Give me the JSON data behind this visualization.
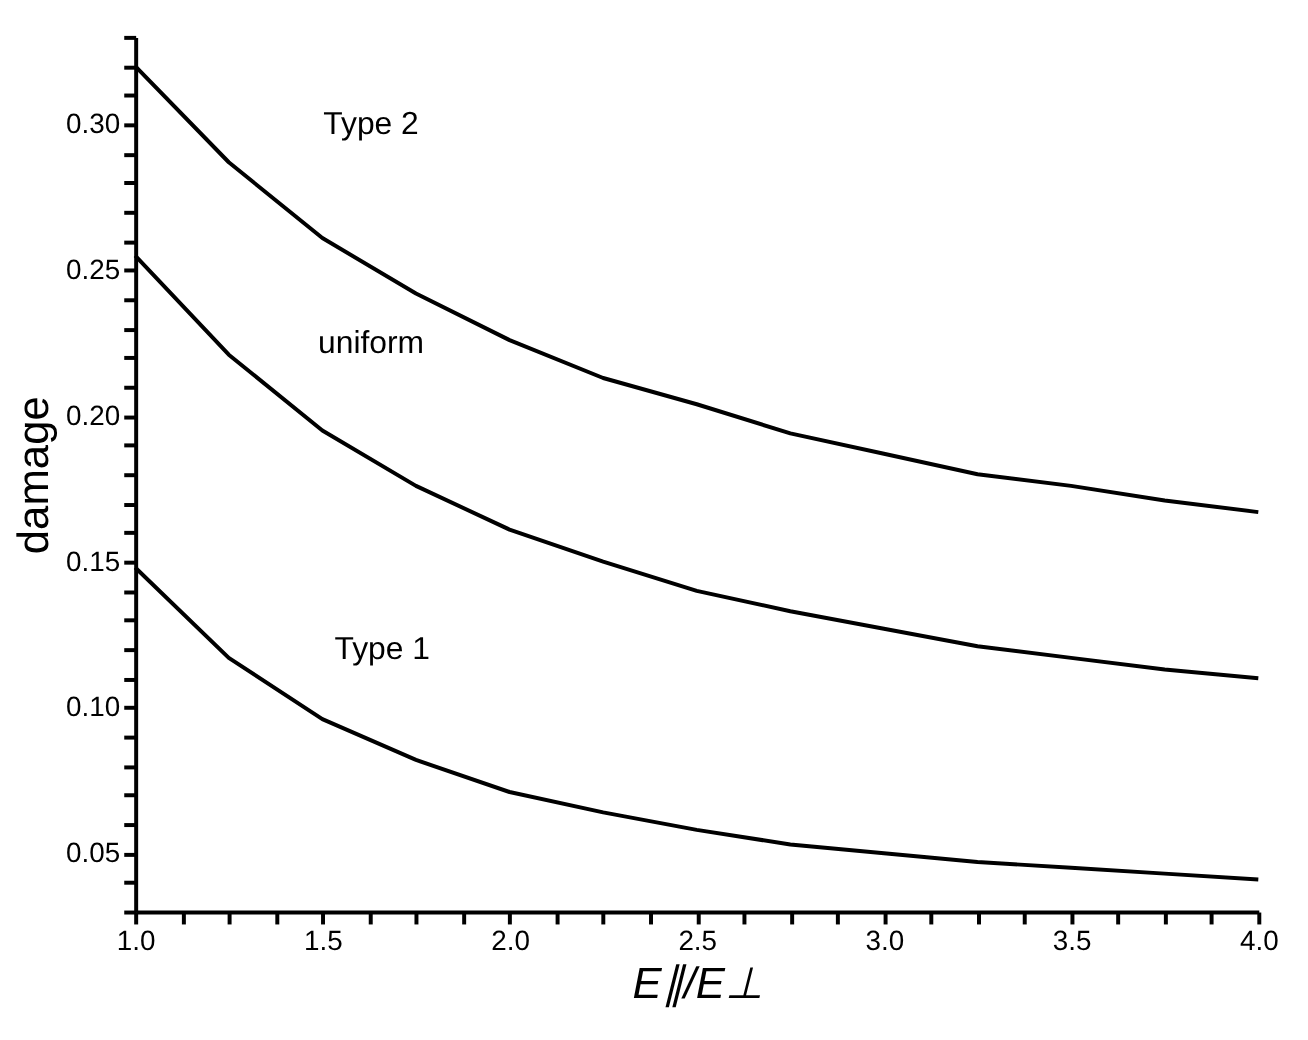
{
  "chart_data": {
    "type": "line",
    "xlabel": "E∥/E⊥",
    "ylabel": "damage",
    "x": [
      1.0,
      1.25,
      1.5,
      1.75,
      2.0,
      2.25,
      2.5,
      2.75,
      3.0,
      3.25,
      3.5,
      3.75,
      4.0
    ],
    "series": [
      {
        "color": "#000000",
        "values": [
          0.32,
          0.287,
          0.261,
          0.242,
          0.226,
          0.213,
          0.204,
          0.194,
          0.187,
          0.18,
          0.176,
          0.171,
          0.167
        ]
      },
      {
        "color": "#000000",
        "values": [
          0.255,
          0.221,
          0.195,
          0.176,
          0.161,
          0.15,
          0.14,
          0.133,
          0.127,
          0.121,
          0.117,
          0.113,
          0.11
        ]
      },
      {
        "color": "#000000",
        "values": [
          0.148,
          0.117,
          0.096,
          0.082,
          0.071,
          0.064,
          0.058,
          0.053,
          0.05,
          0.047,
          0.045,
          0.043,
          0.041
        ]
      }
    ],
    "annotations": [
      "Type 2",
      "uniform",
      "Type 1"
    ],
    "xlim": [
      1.0,
      4.0
    ],
    "ylim": [
      0.03,
      0.33
    ],
    "xticks": [
      {
        "value": 1.0,
        "label": "1.0"
      },
      {
        "value": 1.125,
        "label": null
      },
      {
        "value": 1.25,
        "label": null
      },
      {
        "value": 1.375,
        "label": null
      },
      {
        "value": 1.5,
        "label": "1.5"
      },
      {
        "value": 1.625,
        "label": null
      },
      {
        "value": 1.75,
        "label": null
      },
      {
        "value": 1.875,
        "label": null
      },
      {
        "value": 2.0,
        "label": "2.0"
      },
      {
        "value": 2.125,
        "label": null
      },
      {
        "value": 2.25,
        "label": null
      },
      {
        "value": 2.375,
        "label": null
      },
      {
        "value": 2.5,
        "label": "2.5"
      },
      {
        "value": 2.625,
        "label": null
      },
      {
        "value": 2.75,
        "label": null
      },
      {
        "value": 2.875,
        "label": null
      },
      {
        "value": 3.0,
        "label": "3.0"
      },
      {
        "value": 3.125,
        "label": null
      },
      {
        "value": 3.25,
        "label": null
      },
      {
        "value": 3.375,
        "label": null
      },
      {
        "value": 3.5,
        "label": "3.5"
      },
      {
        "value": 3.625,
        "label": null
      },
      {
        "value": 3.75,
        "label": null
      },
      {
        "value": 3.875,
        "label": null
      },
      {
        "value": 4.0,
        "label": "4.0"
      }
    ],
    "yticks": [
      {
        "value": 0.03,
        "label": null
      },
      {
        "value": 0.04,
        "label": null
      },
      {
        "value": 0.05,
        "label": "0.05"
      },
      {
        "value": 0.06,
        "label": null
      },
      {
        "value": 0.07,
        "label": null
      },
      {
        "value": 0.08,
        "label": null
      },
      {
        "value": 0.09,
        "label": null
      },
      {
        "value": 0.1,
        "label": "0.10"
      },
      {
        "value": 0.11,
        "label": null
      },
      {
        "value": 0.12,
        "label": null
      },
      {
        "value": 0.13,
        "label": null
      },
      {
        "value": 0.14,
        "label": null
      },
      {
        "value": 0.15,
        "label": "0.15"
      },
      {
        "value": 0.16,
        "label": null
      },
      {
        "value": 0.17,
        "label": null
      },
      {
        "value": 0.18,
        "label": null
      },
      {
        "value": 0.19,
        "label": null
      },
      {
        "value": 0.2,
        "label": "0.20"
      },
      {
        "value": 0.21,
        "label": null
      },
      {
        "value": 0.22,
        "label": null
      },
      {
        "value": 0.23,
        "label": null
      },
      {
        "value": 0.24,
        "label": null
      },
      {
        "value": 0.25,
        "label": "0.25"
      },
      {
        "value": 0.26,
        "label": null
      },
      {
        "value": 0.27,
        "label": null
      },
      {
        "value": 0.28,
        "label": null
      },
      {
        "value": 0.29,
        "label": null
      },
      {
        "value": 0.3,
        "label": "0.30"
      },
      {
        "value": 0.31,
        "label": null
      },
      {
        "value": 0.32,
        "label": null
      },
      {
        "value": 0.33,
        "label": null
      }
    ],
    "grid": false,
    "marker": "none",
    "line_style": "solid"
  }
}
